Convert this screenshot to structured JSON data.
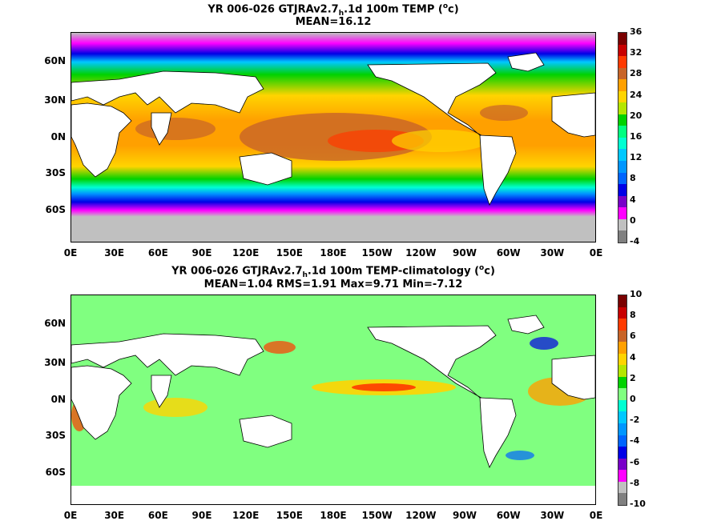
{
  "panel1": {
    "title_pre": "YR 006-026 GTJRAv2.7",
    "title_sub": "h",
    "title_post": ".1d 100m TEMP (",
    "title_sup": "o",
    "title_end": "c)",
    "stats": "MEAN=16.12",
    "colorbar_ticks": [
      "36",
      "32",
      "28",
      "24",
      "20",
      "16",
      "12",
      "8",
      "4",
      "0",
      "-4"
    ],
    "colors": [
      "#7a0000",
      "#c80000",
      "#ff3a00",
      "#c86428",
      "#ffa000",
      "#ffd400",
      "#b4e600",
      "#00d200",
      "#00ff80",
      "#00ffd2",
      "#00c8ff",
      "#0096ff",
      "#0064ff",
      "#0000e6",
      "#7800c8",
      "#ff00ff",
      "#c0c0c0",
      "#808080"
    ]
  },
  "panel2": {
    "title_pre": "YR 006-026 GTJRAv2.7",
    "title_sub": "h",
    "title_post": ".1d 100m TEMP-climatology (",
    "title_sup": "o",
    "title_end": "c)",
    "stats": "MEAN=1.04   RMS=1.91   Max=9.71   Min=-7.12",
    "colorbar_ticks": [
      "10",
      "8",
      "6",
      "4",
      "2",
      "0",
      "-2",
      "-4",
      "-6",
      "-8",
      "-10"
    ],
    "colors": [
      "#7a0000",
      "#c80000",
      "#ff3a00",
      "#c86428",
      "#ffa000",
      "#ffd400",
      "#b4e600",
      "#00d200",
      "#80ff80",
      "#00ffd2",
      "#00c8ff",
      "#0096ff",
      "#0064ff",
      "#0000e6",
      "#7800c8",
      "#ff00ff",
      "#c0c0c0",
      "#808080"
    ]
  },
  "x_ticks": [
    "0E",
    "30E",
    "60E",
    "90E",
    "120E",
    "150E",
    "180E",
    "150W",
    "120W",
    "90W",
    "60W",
    "30W",
    "0E"
  ],
  "y_ticks": [
    "60N",
    "30N",
    "0N",
    "30S",
    "60S"
  ]
}
